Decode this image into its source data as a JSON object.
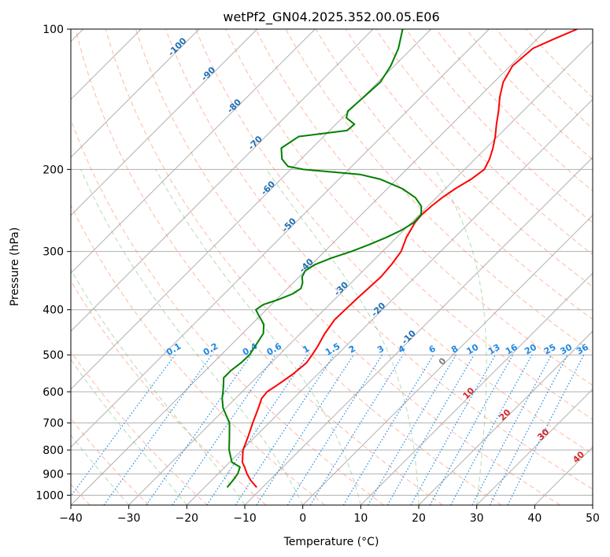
{
  "colors": {
    "temperature": "#ff0000",
    "dewpoint": "#008000",
    "dry_adiabat": "#ff8a65",
    "moist_adiabat": "#66bb6a",
    "mixing_ratio": "#1e88e5",
    "isotherm": "#808080",
    "annot_blue": "#1f6fb4",
    "annot_red": "#d62728",
    "annot_grey": "#7f7f7f"
  },
  "chart_data": {
    "type": "line",
    "title": "wetPf2_GN04.2025.352.00.05.E06",
    "xlabel": "Temperature (°C)",
    "ylabel": "Pressure (hPa)",
    "xlim": [
      -40,
      50
    ],
    "ylim": [
      1050,
      100
    ],
    "yscale": "log",
    "skew": "skew-T log-P",
    "grid": true,
    "x_ticks": [
      "−40",
      "−30",
      "−20",
      "−10",
      "0",
      "10",
      "20",
      "30",
      "40",
      "50"
    ],
    "x_tick_values": [
      -40,
      -30,
      -20,
      -10,
      0,
      10,
      20,
      30,
      40,
      50
    ],
    "y_ticks": [
      "100",
      "200",
      "300",
      "400",
      "500",
      "600",
      "700",
      "800",
      "900",
      "1000"
    ],
    "y_tick_values": [
      100,
      200,
      300,
      400,
      500,
      600,
      700,
      800,
      900,
      1000
    ],
    "series": [
      {
        "key": "temperature",
        "pressure": [
          962,
          930,
          900,
          870,
          850,
          800,
          750,
          700,
          650,
          620,
          600,
          580,
          550,
          520,
          500,
          480,
          450,
          420,
          400,
          380,
          360,
          340,
          320,
          300,
          280,
          260,
          250,
          240,
          230,
          220,
          210,
          200,
          190,
          180,
          170,
          160,
          150,
          140,
          130,
          120,
          110,
          105,
          100
        ],
        "temperature": [
          -11.0,
          -13.2,
          -15.0,
          -16.6,
          -17.8,
          -19.8,
          -21.2,
          -22.8,
          -24.4,
          -25.5,
          -25.7,
          -25.1,
          -24.3,
          -23.9,
          -24.3,
          -24.8,
          -25.8,
          -26.5,
          -26.4,
          -26.3,
          -26.1,
          -25.9,
          -26.2,
          -26.8,
          -28.3,
          -29.4,
          -29.6,
          -29.4,
          -29.0,
          -28.3,
          -27.2,
          -26.6,
          -27.5,
          -28.8,
          -30.4,
          -32.3,
          -34.2,
          -36.4,
          -38.4,
          -39.6,
          -39.1,
          -37.1,
          -34.8
        ]
      },
      {
        "key": "dewpoint",
        "pressure": [
          962,
          930,
          900,
          870,
          850,
          800,
          750,
          700,
          650,
          620,
          600,
          580,
          560,
          540,
          520,
          500,
          480,
          450,
          430,
          410,
          400,
          390,
          380,
          370,
          360,
          350,
          340,
          330,
          320,
          310,
          300,
          290,
          280,
          270,
          260,
          250,
          240,
          230,
          220,
          210,
          205,
          200,
          197,
          190,
          180,
          170,
          165,
          160,
          155,
          150,
          140,
          130,
          120,
          110,
          100
        ],
        "temperature": [
          -16.1,
          -16.3,
          -16.6,
          -17.4,
          -19.6,
          -22.2,
          -24.4,
          -26.8,
          -30.5,
          -32.3,
          -33.3,
          -34.4,
          -35.6,
          -35.6,
          -35.2,
          -35.1,
          -35.6,
          -36.4,
          -37.9,
          -40.5,
          -41.8,
          -41.4,
          -39.6,
          -38.2,
          -37.7,
          -38.4,
          -39.5,
          -40.0,
          -39.4,
          -37.7,
          -35.4,
          -33.5,
          -31.8,
          -30.4,
          -29.6,
          -29.7,
          -31.1,
          -33.6,
          -37.4,
          -42.8,
          -47.2,
          -57.8,
          -61.0,
          -63.3,
          -65.3,
          -64.3,
          -57.0,
          -56.8,
          -59.3,
          -60.2,
          -59.9,
          -59.6,
          -60.6,
          -62.3,
          -64.9
        ]
      }
    ],
    "dry_adiabat_theta_c": [
      -100,
      -90,
      -80,
      -70,
      -60,
      -50,
      -40,
      -30,
      -20,
      -10,
      0,
      10,
      20,
      30,
      40,
      50,
      60,
      70,
      80,
      90,
      100,
      110,
      120,
      130,
      140,
      150,
      160,
      170
    ],
    "moist_adiabat_start_c": [
      -30,
      -20,
      -10,
      0,
      10,
      20,
      30
    ],
    "mixing_ratio_gkg": [
      0.1,
      0.2,
      0.4,
      0.6,
      1,
      1.5,
      2,
      3,
      4,
      6,
      8,
      10,
      13,
      16,
      20,
      25,
      30,
      36
    ],
    "mixing_ratio_labels": [
      "0.1",
      "0.2",
      "0.4",
      "0.6",
      "1",
      "1.5",
      "2",
      "3",
      "4",
      "6",
      "8",
      "10",
      "13",
      "16",
      "20",
      "25",
      "30",
      "36"
    ],
    "annotations": {
      "isotherm_blue": [
        {
          "text": "-100",
          "t": -100
        },
        {
          "text": "-90",
          "t": -90
        },
        {
          "text": "-80",
          "t": -80
        },
        {
          "text": "-70",
          "t": -70
        },
        {
          "text": "-60",
          "t": -60
        },
        {
          "text": "-50",
          "t": -50
        },
        {
          "text": "-40",
          "t": -40
        },
        {
          "text": "-30",
          "t": -30
        },
        {
          "text": "-20",
          "t": -20
        },
        {
          "text": "-10",
          "t": -10
        }
      ],
      "isotherm_warm": [
        {
          "text": "0",
          "t": 0,
          "color": "annot_grey"
        },
        {
          "text": "10",
          "t": 10,
          "color": "annot_red"
        },
        {
          "text": "20",
          "t": 20,
          "color": "annot_red"
        },
        {
          "text": "30",
          "t": 30,
          "color": "annot_red"
        },
        {
          "text": "40",
          "t": 40,
          "color": "annot_red"
        }
      ]
    }
  }
}
